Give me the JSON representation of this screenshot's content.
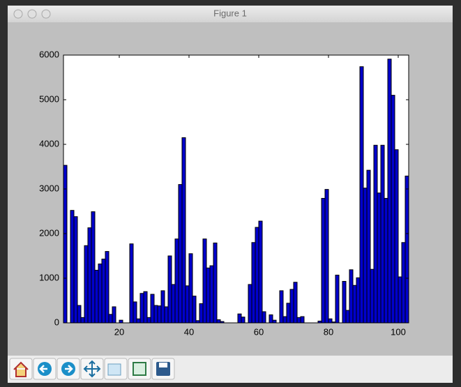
{
  "window_title": "Figure 1",
  "chart_data": {
    "type": "bar",
    "x": [
      4,
      5,
      6,
      7,
      8,
      9,
      10,
      11,
      12,
      13,
      14,
      15,
      16,
      17,
      18,
      19,
      20,
      21,
      22,
      23,
      24,
      25,
      26,
      27,
      28,
      29,
      30,
      31,
      32,
      33,
      34,
      35,
      36,
      37,
      38,
      39,
      40,
      41,
      42,
      43,
      44,
      45,
      46,
      47,
      48,
      49,
      50,
      51,
      52,
      53,
      54,
      55,
      56,
      57,
      58,
      59,
      60,
      61,
      62,
      63,
      64,
      65,
      66,
      67,
      68,
      69,
      70,
      71,
      72,
      73,
      74,
      75,
      76,
      77,
      78,
      79,
      80,
      81,
      82,
      83,
      84,
      85,
      86,
      87,
      88,
      89,
      90,
      91,
      92,
      93,
      94,
      95,
      96,
      97,
      98,
      99,
      100,
      101,
      102
    ],
    "values": [
      3530,
      0,
      2520,
      2380,
      390,
      120,
      1730,
      2130,
      2490,
      1180,
      1320,
      1430,
      1600,
      190,
      360,
      0,
      60,
      0,
      0,
      1770,
      470,
      90,
      660,
      700,
      120,
      640,
      390,
      380,
      720,
      360,
      1500,
      860,
      1880,
      3100,
      4150,
      830,
      1550,
      600,
      50,
      430,
      1880,
      1230,
      1280,
      1790,
      70,
      30,
      0,
      0,
      0,
      0,
      200,
      130,
      0,
      860,
      1800,
      2140,
      2280,
      250,
      0,
      180,
      60,
      0,
      720,
      140,
      440,
      750,
      910,
      120,
      140,
      0,
      0,
      0,
      0,
      40,
      2790,
      2990,
      90,
      20,
      1070,
      0,
      930,
      280,
      1190,
      840,
      1010,
      5740,
      3020,
      3420,
      1200,
      3980,
      2910,
      3980,
      2790,
      5910,
      5100,
      3880,
      1030,
      1800,
      3290
    ],
    "color": "#0000cc",
    "xlim": [
      4,
      103
    ],
    "xticks": [
      20,
      40,
      60,
      80,
      100
    ],
    "ylim": [
      0,
      6000
    ],
    "yticks": [
      0,
      1000,
      2000,
      3000,
      4000,
      5000,
      6000
    ],
    "grid": false
  }
}
